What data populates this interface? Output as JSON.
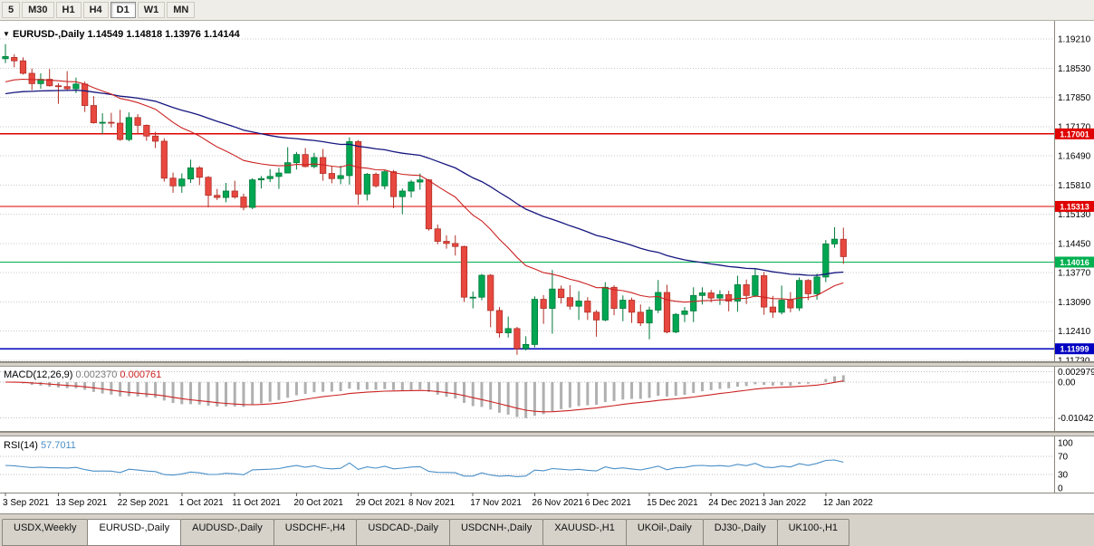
{
  "toolbar": {
    "timeframes": [
      "5",
      "M30",
      "H1",
      "H4",
      "D1",
      "W1",
      "MN"
    ],
    "active_timeframe": "D1"
  },
  "chart": {
    "title": {
      "symbol": "EURUSD-,Daily",
      "open": "1.14549",
      "high": "1.14818",
      "low": "1.13976",
      "close": "1.14144"
    },
    "price_axis_labels": [
      "1.19210",
      "1.18530",
      "1.17850",
      "1.17170",
      "1.16490",
      "1.15810",
      "1.15130",
      "1.14450",
      "1.13770",
      "1.13090",
      "1.12410",
      "1.11730"
    ],
    "hlines": [
      {
        "price": 1.17001,
        "label": "1.17001",
        "color": "#e00000"
      },
      {
        "price": 1.15313,
        "label": "1.15313",
        "color": "#e00000"
      },
      {
        "price": 1.14016,
        "label": "1.14016",
        "color": "#00b050"
      },
      {
        "price": 1.11999,
        "label": "1.11999",
        "color": "#0000c0"
      }
    ],
    "colors": {
      "bull": "#00a651",
      "bull_stroke": "#007a3b",
      "bear": "#e8483f",
      "bear_stroke": "#b03028",
      "ma_fast": "#cc2222",
      "ma_slow": "#16167f",
      "grid": "#c9c9c9",
      "macd_hist": "#b0b0b0",
      "macd_signal": "#cc2222",
      "rsi": "#4a8fc7"
    }
  },
  "macd_pane": {
    "label_name": "MACD(12,26,9)",
    "value_main": "0.002370",
    "value_signal": "0.000761",
    "axis_labels": [
      {
        "text": "0.002979",
        "value": 0.002979
      },
      {
        "text": "0.00",
        "value": 0
      },
      {
        "text": "-0.010422",
        "value": -0.010422
      }
    ]
  },
  "rsi_pane": {
    "label_name": "RSI(14)",
    "value": "57.7011",
    "levels": [
      70,
      30
    ],
    "axis_labels": [
      {
        "text": "100",
        "value": 100
      },
      {
        "text": "70",
        "value": 70
      },
      {
        "text": "30",
        "value": 30
      },
      {
        "text": "0",
        "value": 0
      }
    ]
  },
  "date_axis": {
    "labels": [
      {
        "text": "3 Sep 2021",
        "index": 0
      },
      {
        "text": "13 Sep 2021",
        "index": 6
      },
      {
        "text": "22 Sep 2021",
        "index": 13
      },
      {
        "text": "1 Oct 2021",
        "index": 20
      },
      {
        "text": "11 Oct 2021",
        "index": 26
      },
      {
        "text": "20 Oct 2021",
        "index": 33
      },
      {
        "text": "29 Oct 2021",
        "index": 40
      },
      {
        "text": "8 Nov 2021",
        "index": 46
      },
      {
        "text": "17 Nov 2021",
        "index": 53
      },
      {
        "text": "26 Nov 2021",
        "index": 60
      },
      {
        "text": "6 Dec 2021",
        "index": 66
      },
      {
        "text": "15 Dec 2021",
        "index": 73
      },
      {
        "text": "24 Dec 2021",
        "index": 80
      },
      {
        "text": "3 Jan 2022",
        "index": 86
      },
      {
        "text": "12 Jan 2022",
        "index": 93
      }
    ]
  },
  "tabs": {
    "items": [
      {
        "label": "USDX,Weekly",
        "active": false
      },
      {
        "label": "EURUSD-,Daily",
        "active": true
      },
      {
        "label": "AUDUSD-,Daily",
        "active": false
      },
      {
        "label": "USDCHF-,H4",
        "active": false
      },
      {
        "label": "USDCAD-,Daily",
        "active": false
      },
      {
        "label": "USDCNH-,Daily",
        "active": false
      },
      {
        "label": "XAUUSD-,H1",
        "active": false
      },
      {
        "label": "UKOil-,Daily",
        "active": false
      },
      {
        "label": "DJ30-,Daily",
        "active": false
      },
      {
        "label": "UK100-,H1",
        "active": false
      }
    ]
  },
  "chart_data": {
    "type": "candlestick",
    "title": "EURUSD-,Daily",
    "current_ohlc": {
      "open": 1.14549,
      "high": 1.14818,
      "low": 1.13976,
      "close": 1.14144
    },
    "ylim": [
      1.1173,
      1.1921
    ],
    "y_ticks": [
      1.1921,
      1.1853,
      1.1785,
      1.1717,
      1.1649,
      1.1581,
      1.1513,
      1.1445,
      1.1377,
      1.1309,
      1.1241,
      1.1173
    ],
    "x_ticks": [
      "3 Sep 2021",
      "13 Sep 2021",
      "22 Sep 2021",
      "1 Oct 2021",
      "11 Oct 2021",
      "20 Oct 2021",
      "29 Oct 2021",
      "8 Nov 2021",
      "17 Nov 2021",
      "26 Nov 2021",
      "6 Dec 2021",
      "15 Dec 2021",
      "24 Dec 2021",
      "3 Jan 2022",
      "12 Jan 2022"
    ],
    "overlays": {
      "hlines": [
        1.17001,
        1.15313,
        1.14016,
        1.11999
      ]
    },
    "indicators": {
      "ma_fast_period": 20,
      "ma_slow_period": 50,
      "macd": {
        "fast": 12,
        "slow": 26,
        "signal": 9,
        "current": 0.00237,
        "current_signal": 0.000761,
        "range": [
          -0.010422,
          0.002979
        ]
      },
      "rsi": {
        "period": 14,
        "current": 57.7011,
        "levels": [
          30,
          70
        ]
      }
    },
    "candles": [
      [
        1.1875,
        1.1909,
        1.1865,
        1.188
      ],
      [
        1.1878,
        1.1885,
        1.1855,
        1.187
      ],
      [
        1.187,
        1.1878,
        1.1838,
        1.1841
      ],
      [
        1.1841,
        1.1852,
        1.1802,
        1.1817
      ],
      [
        1.1817,
        1.1841,
        1.1805,
        1.1827
      ],
      [
        1.1827,
        1.1851,
        1.181,
        1.1812
      ],
      [
        1.1812,
        1.1818,
        1.177,
        1.181
      ],
      [
        1.181,
        1.1846,
        1.18,
        1.1805
      ],
      [
        1.1805,
        1.1831,
        1.1795,
        1.1816
      ],
      [
        1.1816,
        1.1822,
        1.1751,
        1.1766
      ],
      [
        1.1766,
        1.1788,
        1.1724,
        1.1726
      ],
      [
        1.1726,
        1.1748,
        1.17,
        1.1727
      ],
      [
        1.1727,
        1.1749,
        1.1715,
        1.1725
      ],
      [
        1.1725,
        1.1756,
        1.1684,
        1.1687
      ],
      [
        1.1687,
        1.175,
        1.1683,
        1.1738
      ],
      [
        1.1738,
        1.1746,
        1.1701,
        1.172
      ],
      [
        1.172,
        1.1722,
        1.1684,
        1.1695
      ],
      [
        1.1695,
        1.1705,
        1.1667,
        1.1683
      ],
      [
        1.1683,
        1.169,
        1.1589,
        1.1597
      ],
      [
        1.1597,
        1.161,
        1.1563,
        1.1579
      ],
      [
        1.1579,
        1.1608,
        1.1563,
        1.1595
      ],
      [
        1.1595,
        1.164,
        1.1586,
        1.1621
      ],
      [
        1.1621,
        1.1625,
        1.1581,
        1.1599
      ],
      [
        1.1599,
        1.1602,
        1.1529,
        1.1557
      ],
      [
        1.1557,
        1.1572,
        1.1546,
        1.1552
      ],
      [
        1.1552,
        1.1586,
        1.1541,
        1.1567
      ],
      [
        1.1567,
        1.1591,
        1.1549,
        1.1553
      ],
      [
        1.1553,
        1.1561,
        1.1522,
        1.1529
      ],
      [
        1.1529,
        1.1597,
        1.1525,
        1.1593
      ],
      [
        1.1593,
        1.1602,
        1.1573,
        1.1596
      ],
      [
        1.1596,
        1.1618,
        1.1588,
        1.1601
      ],
      [
        1.1601,
        1.1621,
        1.1572,
        1.1609
      ],
      [
        1.1609,
        1.1669,
        1.1609,
        1.1633
      ],
      [
        1.1633,
        1.1658,
        1.1617,
        1.1652
      ],
      [
        1.1652,
        1.1667,
        1.1622,
        1.1624
      ],
      [
        1.1624,
        1.1656,
        1.162,
        1.1645
      ],
      [
        1.1645,
        1.1665,
        1.1591,
        1.1608
      ],
      [
        1.1608,
        1.1626,
        1.1585,
        1.1596
      ],
      [
        1.1596,
        1.1626,
        1.1583,
        1.1603
      ],
      [
        1.1603,
        1.1692,
        1.1582,
        1.1682
      ],
      [
        1.1682,
        1.1686,
        1.1535,
        1.156
      ],
      [
        1.156,
        1.1609,
        1.1545,
        1.1606
      ],
      [
        1.1606,
        1.161,
        1.1575,
        1.1579
      ],
      [
        1.1579,
        1.1617,
        1.1571,
        1.1612
      ],
      [
        1.1612,
        1.1616,
        1.1527,
        1.1554
      ],
      [
        1.1554,
        1.1573,
        1.1513,
        1.1567
      ],
      [
        1.1567,
        1.1593,
        1.1552,
        1.1588
      ],
      [
        1.1588,
        1.1608,
        1.157,
        1.1593
      ],
      [
        1.1593,
        1.1595,
        1.1475,
        1.1479
      ],
      [
        1.1479,
        1.1489,
        1.1443,
        1.145
      ],
      [
        1.145,
        1.1464,
        1.1433,
        1.1445
      ],
      [
        1.1445,
        1.1464,
        1.1417,
        1.1438
      ],
      [
        1.1438,
        1.144,
        1.1309,
        1.132
      ],
      [
        1.132,
        1.1333,
        1.1294,
        1.132
      ],
      [
        1.132,
        1.1374,
        1.1313,
        1.1371
      ],
      [
        1.1371,
        1.1374,
        1.125,
        1.1289
      ],
      [
        1.1289,
        1.1297,
        1.1226,
        1.1237
      ],
      [
        1.1237,
        1.1275,
        1.1226,
        1.1247
      ],
      [
        1.1247,
        1.1251,
        1.1186,
        1.12
      ],
      [
        1.12,
        1.1229,
        1.1196,
        1.121
      ],
      [
        1.121,
        1.1322,
        1.1203,
        1.1315
      ],
      [
        1.1315,
        1.1325,
        1.1258,
        1.1294
      ],
      [
        1.1294,
        1.1383,
        1.1235,
        1.1339
      ],
      [
        1.1339,
        1.1347,
        1.1305,
        1.1319
      ],
      [
        1.1319,
        1.1348,
        1.1291,
        1.1299
      ],
      [
        1.1299,
        1.1334,
        1.1267,
        1.1311
      ],
      [
        1.1311,
        1.132,
        1.1267,
        1.1285
      ],
      [
        1.1285,
        1.129,
        1.1228,
        1.1267
      ],
      [
        1.1267,
        1.1355,
        1.1264,
        1.1343
      ],
      [
        1.1343,
        1.1348,
        1.1278,
        1.1294
      ],
      [
        1.1294,
        1.1324,
        1.1264,
        1.1313
      ],
      [
        1.1313,
        1.1319,
        1.126,
        1.1285
      ],
      [
        1.1285,
        1.1303,
        1.1253,
        1.126
      ],
      [
        1.126,
        1.1298,
        1.1222,
        1.129
      ],
      [
        1.129,
        1.136,
        1.1283,
        1.1331
      ],
      [
        1.1331,
        1.1349,
        1.1236,
        1.1239
      ],
      [
        1.1239,
        1.1283,
        1.1236,
        1.128
      ],
      [
        1.128,
        1.1297,
        1.1262,
        1.1288
      ],
      [
        1.1288,
        1.1343,
        1.1262,
        1.1324
      ],
      [
        1.1324,
        1.1343,
        1.1303,
        1.133
      ],
      [
        1.133,
        1.1337,
        1.1308,
        1.1318
      ],
      [
        1.1318,
        1.1336,
        1.1302,
        1.1326
      ],
      [
        1.1326,
        1.1335,
        1.1287,
        1.1311
      ],
      [
        1.1311,
        1.137,
        1.1286,
        1.1349
      ],
      [
        1.1349,
        1.1361,
        1.1304,
        1.1324
      ],
      [
        1.1324,
        1.1386,
        1.132,
        1.137
      ],
      [
        1.137,
        1.1379,
        1.1279,
        1.1297
      ],
      [
        1.1297,
        1.1323,
        1.1272,
        1.1285
      ],
      [
        1.1285,
        1.1347,
        1.128,
        1.1313
      ],
      [
        1.1313,
        1.1332,
        1.1285,
        1.1295
      ],
      [
        1.1295,
        1.1366,
        1.1288,
        1.1359
      ],
      [
        1.1359,
        1.1362,
        1.1313,
        1.1328
      ],
      [
        1.1328,
        1.1375,
        1.1314,
        1.1367
      ],
      [
        1.1367,
        1.1453,
        1.1355,
        1.1444
      ],
      [
        1.1444,
        1.1483,
        1.1435,
        1.1455
      ],
      [
        1.14549,
        1.14818,
        1.13976,
        1.14144
      ]
    ]
  }
}
